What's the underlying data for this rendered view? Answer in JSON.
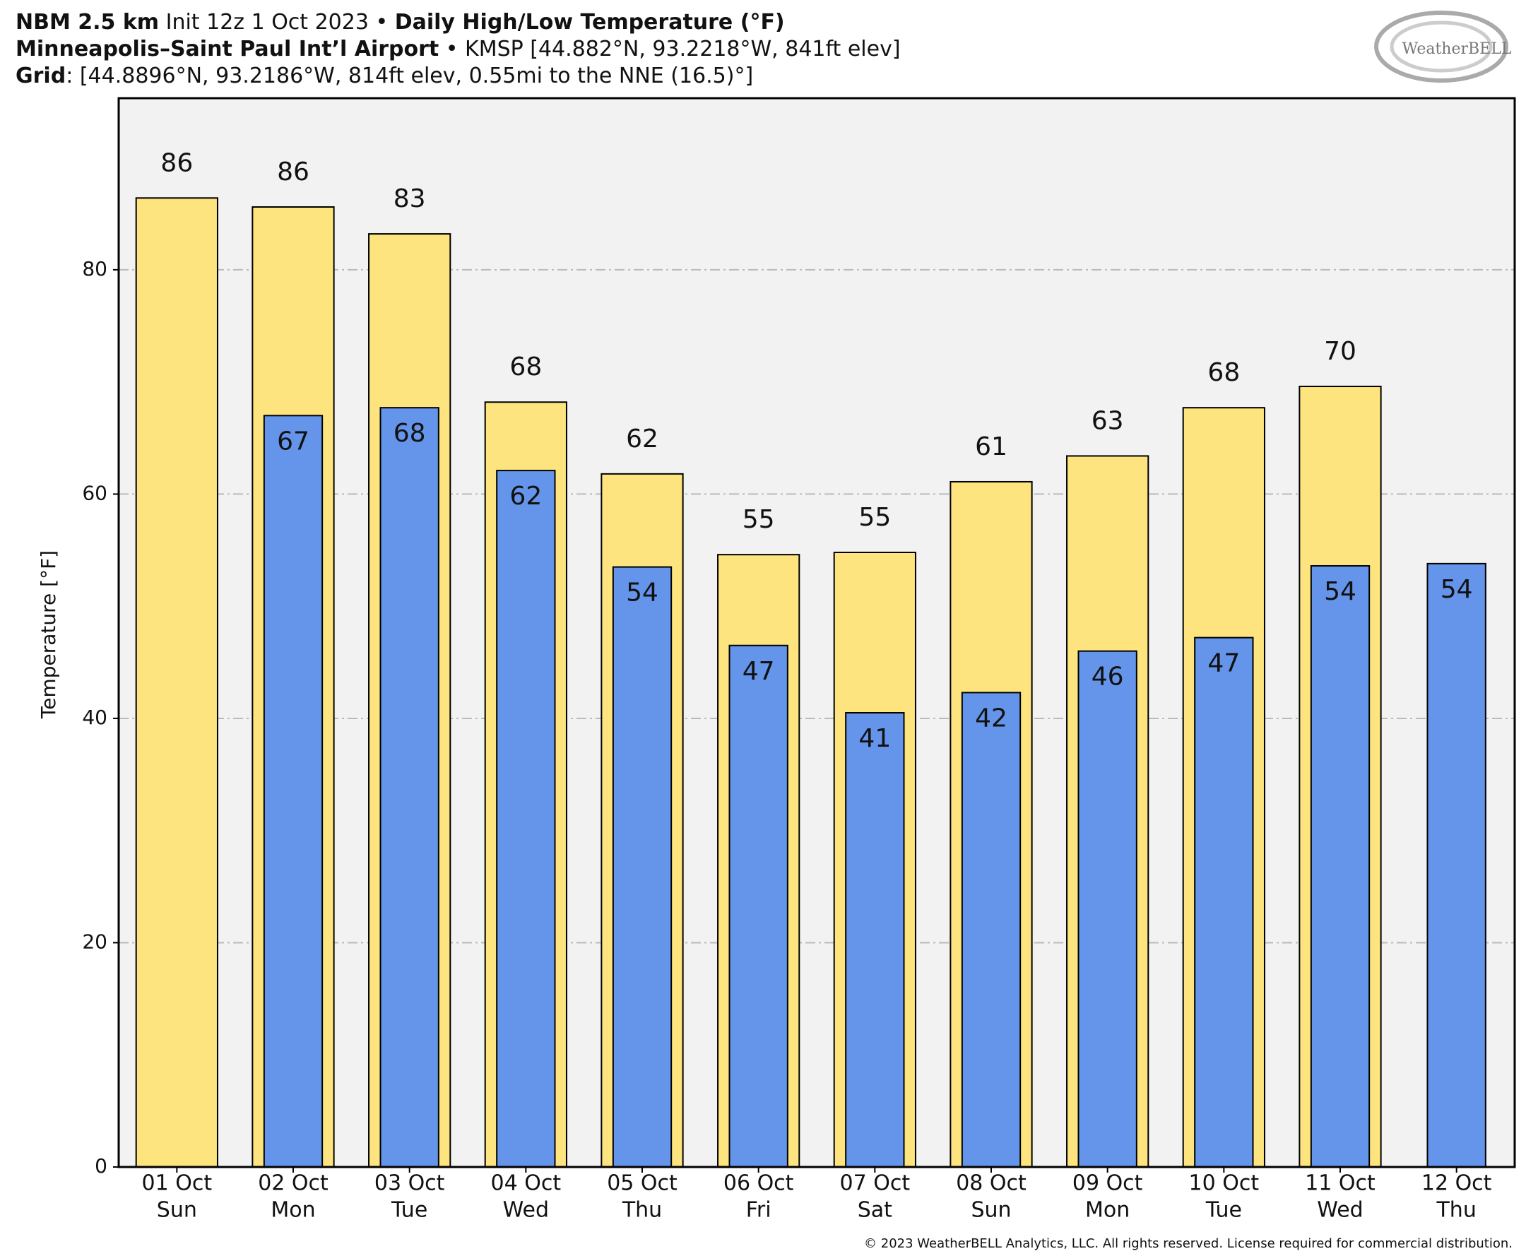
{
  "chart_data": {
    "type": "bar",
    "title": {
      "model": "NBM 2.5 km",
      "init": " Init 12z 1 Oct 2023 • ",
      "product": "Daily High/Low Temperature (°F)"
    },
    "station": {
      "name": "Minneapolis–Saint Paul Int’l Airport",
      "details": " • KMSP [44.882°N, 93.2218°W, 841ft elev]"
    },
    "grid_point": {
      "label": "Grid",
      "details": ": [44.8896°N, 93.2186°W, 814ft elev, 0.55mi to the NNE (16.5)°]"
    },
    "logo": "WeatherBELL",
    "copyright": "© 2023 WeatherBELL Analytics, LLC. All rights reserved. License required for commercial distribution.",
    "y_label": "Temperature [°F]",
    "categories": [
      [
        "01 Oct",
        "Sun"
      ],
      [
        "02 Oct",
        "Mon"
      ],
      [
        "03 Oct",
        "Tue"
      ],
      [
        "04 Oct",
        "Wed"
      ],
      [
        "05 Oct",
        "Thu"
      ],
      [
        "06 Oct",
        "Fri"
      ],
      [
        "07 Oct",
        "Sat"
      ],
      [
        "08 Oct",
        "Sun"
      ],
      [
        "09 Oct",
        "Mon"
      ],
      [
        "10 Oct",
        "Tue"
      ],
      [
        "11 Oct",
        "Wed"
      ],
      [
        "12 Oct",
        "Thu"
      ]
    ],
    "series": [
      {
        "color": "#fde47f",
        "values": [
          86.4,
          85.6,
          83.2,
          68.2,
          61.8,
          54.6,
          54.8,
          61.1,
          63.4,
          67.7,
          69.6,
          null
        ],
        "value_labels": [
          "86",
          "86",
          "83",
          "68",
          "62",
          "55",
          "55",
          "61",
          "63",
          "68",
          "70",
          null
        ]
      },
      {
        "color": "#6495ea",
        "values": [
          null,
          67.0,
          67.7,
          62.1,
          53.5,
          46.5,
          40.5,
          42.3,
          46.0,
          47.2,
          53.6,
          53.8
        ],
        "value_labels": [
          null,
          "67",
          "68",
          "62",
          "54",
          "47",
          "41",
          "42",
          "46",
          "47",
          "54",
          "54"
        ]
      }
    ],
    "ylim": [
      0,
      95.3
    ],
    "yticks": [
      0,
      20,
      40,
      60,
      80
    ],
    "grid": true
  }
}
